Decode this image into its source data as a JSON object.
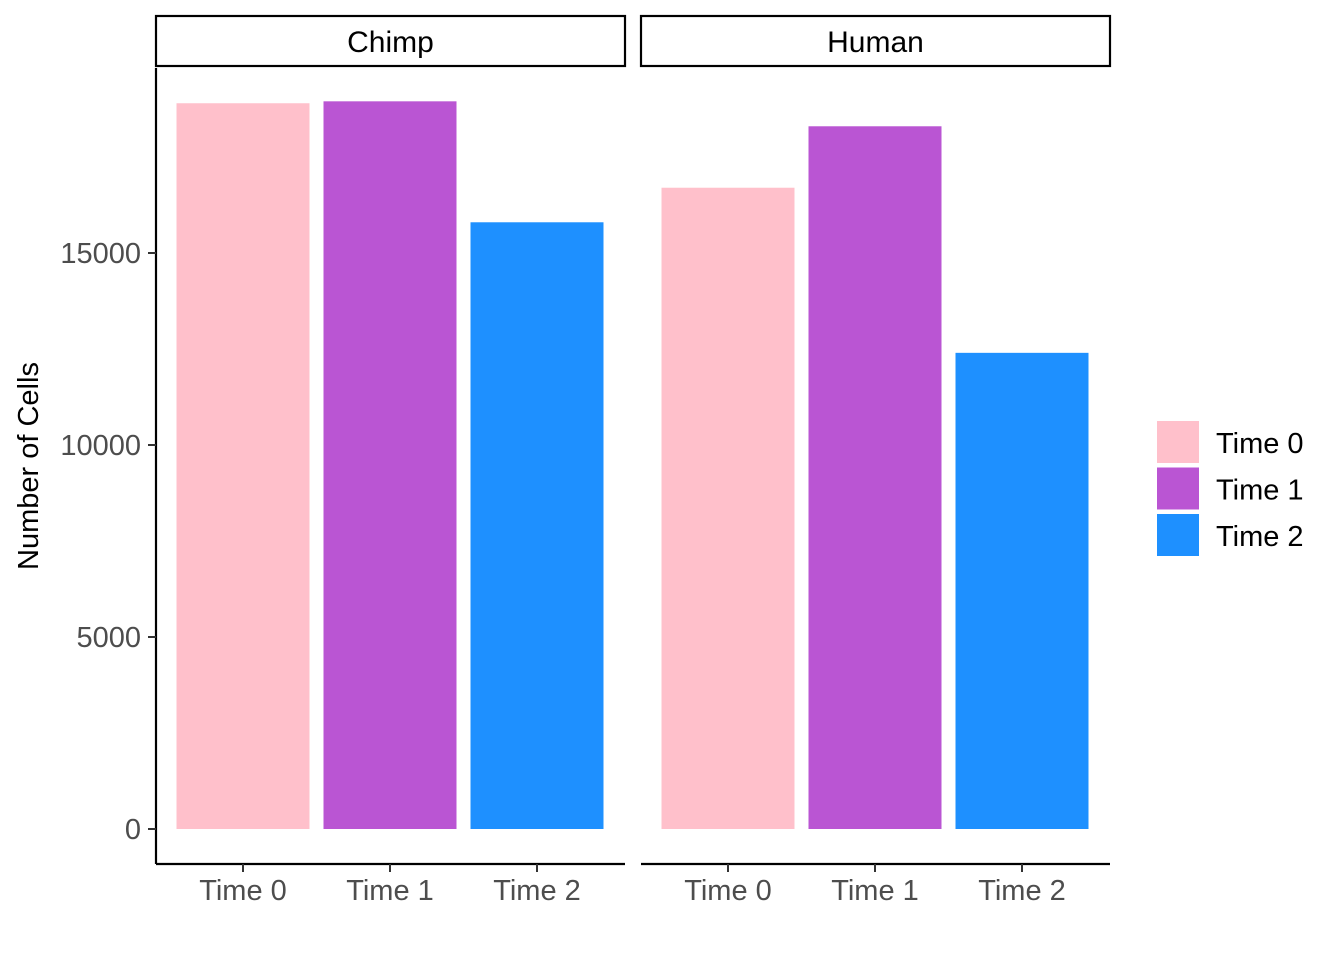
{
  "chart_data": {
    "type": "bar",
    "facets": [
      "Chimp",
      "Human"
    ],
    "categories": [
      "Time 0",
      "Time 1",
      "Time 2"
    ],
    "series": [
      {
        "facet": "Chimp",
        "values": [
          18900,
          18950,
          15800
        ]
      },
      {
        "facet": "Human",
        "values": [
          16700,
          18300,
          12400
        ]
      }
    ],
    "ylabel": "Number of Cells",
    "xlabel": "",
    "ylim": [
      0,
      20000
    ],
    "yticks": [
      0,
      5000,
      10000,
      15000
    ],
    "ytick_labels": [
      "0",
      "5000",
      "10000",
      "15000"
    ],
    "colors": {
      "Time 0": "#FFC0CB",
      "Time 1": "#BA55D3",
      "Time 2": "#1E90FF"
    },
    "legend": {
      "position": "right",
      "entries": [
        "Time 0",
        "Time 1",
        "Time 2"
      ]
    },
    "grid": false
  }
}
